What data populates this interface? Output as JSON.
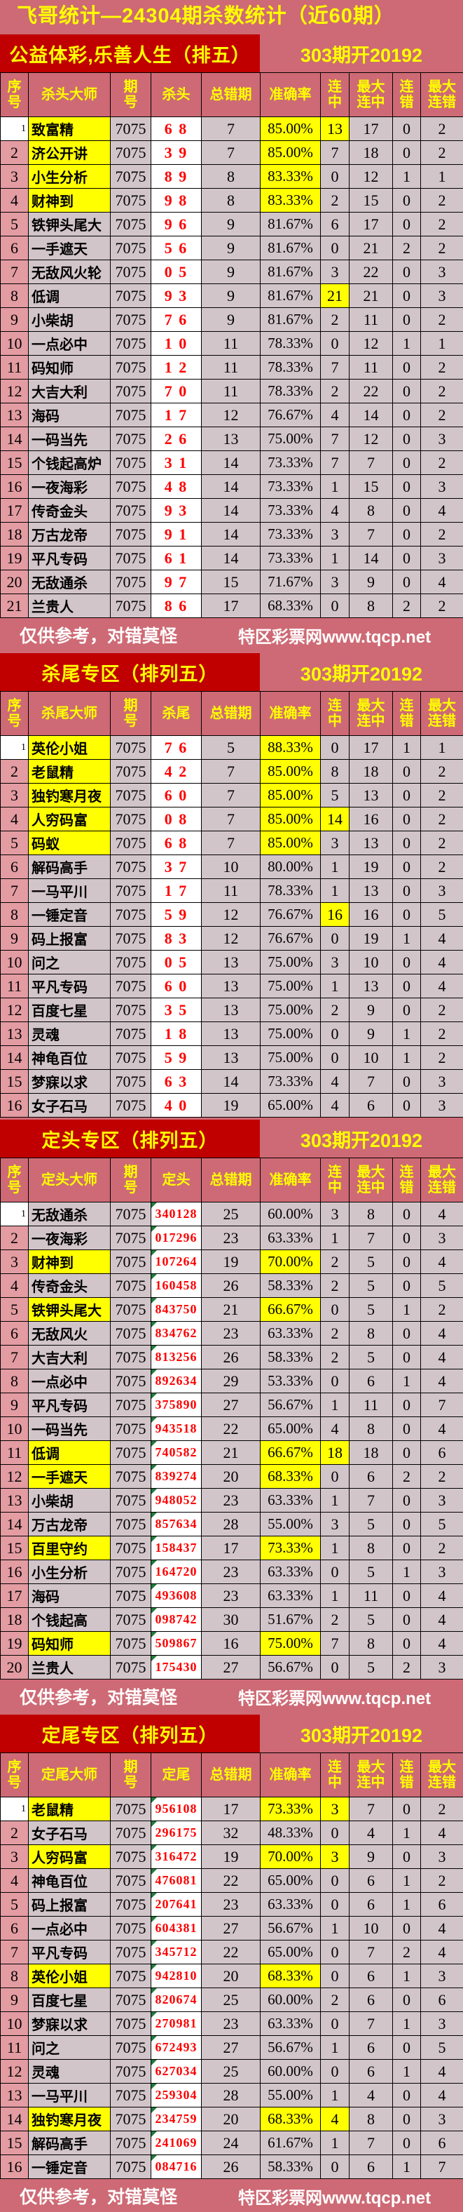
{
  "title": "飞哥统计—24304期杀数统计（近60期）",
  "footer": {
    "left": "仅供参考，对错莫怪",
    "right": "特区彩票网www.tqcp.net"
  },
  "colors": {
    "page_pink": "#CE6A75",
    "band_red": "#C00000",
    "highlight_yellow": "#FFFF00",
    "row_mauve": "#D2C5C9",
    "seq_salmon": "#E39CA2",
    "pick_red_text": "#FF0000",
    "note_green": "#1E7A3C"
  },
  "sections": [
    {
      "key": "sha-tou",
      "band_left": "公益体彩,乐善人生（排五）",
      "band_right": "303期开20192",
      "headers": [
        "序\n号",
        "杀头大师",
        "期\n号",
        "杀头",
        "总错期",
        "准确率",
        "连\n中",
        "最大\n连中",
        "连\n错",
        "最大\n连错"
      ],
      "marker": 0,
      "footer_after": 1,
      "rows": [
        [
          1,
          "致富精",
          1,
          "7075",
          "6 8",
          "7",
          "85.00%",
          1,
          "13",
          1,
          "17",
          "0",
          "2"
        ],
        [
          2,
          "济公开讲",
          1,
          "7075",
          "3 9",
          "7",
          "85.00%",
          1,
          "7",
          0,
          "18",
          "0",
          "2"
        ],
        [
          3,
          "小生分析",
          1,
          "7075",
          "8 9",
          "8",
          "83.33%",
          1,
          "0",
          0,
          "12",
          "1",
          "1"
        ],
        [
          4,
          "财神到",
          1,
          "7075",
          "9 8",
          "8",
          "83.33%",
          1,
          "2",
          0,
          "15",
          "0",
          "2"
        ],
        [
          5,
          "铁钾头尾大",
          0,
          "7075",
          "9 6",
          "9",
          "81.67%",
          0,
          "6",
          0,
          "17",
          "0",
          "2"
        ],
        [
          6,
          "一手遮天",
          0,
          "7075",
          "5 6",
          "9",
          "81.67%",
          0,
          "0",
          0,
          "21",
          "2",
          "2"
        ],
        [
          7,
          "无敌风火轮",
          0,
          "7075",
          "0 5",
          "9",
          "81.67%",
          0,
          "3",
          0,
          "22",
          "0",
          "3"
        ],
        [
          8,
          "低调",
          0,
          "7075",
          "9 3",
          "9",
          "81.67%",
          0,
          "21",
          1,
          "21",
          "0",
          "3"
        ],
        [
          9,
          "小柴胡",
          0,
          "7075",
          "7 6",
          "9",
          "81.67%",
          0,
          "2",
          0,
          "11",
          "0",
          "2"
        ],
        [
          10,
          "一点必中",
          0,
          "7075",
          "1 0",
          "11",
          "78.33%",
          0,
          "0",
          0,
          "12",
          "1",
          "1"
        ],
        [
          11,
          "码知师",
          0,
          "7075",
          "1 2",
          "11",
          "78.33%",
          0,
          "7",
          0,
          "11",
          "0",
          "2"
        ],
        [
          12,
          "大吉大利",
          0,
          "7075",
          "7 0",
          "11",
          "78.33%",
          0,
          "2",
          0,
          "22",
          "0",
          "2"
        ],
        [
          13,
          "海码",
          0,
          "7075",
          "1 7",
          "12",
          "76.67%",
          0,
          "4",
          0,
          "14",
          "0",
          "2"
        ],
        [
          14,
          "一码当先",
          0,
          "7075",
          "2 6",
          "13",
          "75.00%",
          0,
          "7",
          0,
          "12",
          "0",
          "3"
        ],
        [
          15,
          "个钱起高炉",
          0,
          "7075",
          "3 1",
          "14",
          "73.33%",
          0,
          "7",
          0,
          "7",
          "0",
          "2"
        ],
        [
          16,
          "一夜海彩",
          0,
          "7075",
          "4 8",
          "14",
          "73.33%",
          0,
          "1",
          0,
          "15",
          "0",
          "3"
        ],
        [
          17,
          "传奇金头",
          0,
          "7075",
          "9 3",
          "14",
          "73.33%",
          0,
          "4",
          0,
          "8",
          "0",
          "4"
        ],
        [
          18,
          "万古龙帝",
          0,
          "7075",
          "9 1",
          "14",
          "73.33%",
          0,
          "3",
          0,
          "7",
          "0",
          "2"
        ],
        [
          19,
          "平凡专码",
          0,
          "7075",
          "6 1",
          "14",
          "73.33%",
          0,
          "1",
          0,
          "14",
          "0",
          "3"
        ],
        [
          20,
          "无敌通杀",
          0,
          "7075",
          "9 7",
          "15",
          "71.67%",
          0,
          "3",
          0,
          "9",
          "0",
          "4"
        ],
        [
          21,
          "兰贵人",
          0,
          "7075",
          "8 6",
          "17",
          "68.33%",
          0,
          "0",
          0,
          "8",
          "2",
          "2"
        ]
      ]
    },
    {
      "key": "sha-wei",
      "band_left": "杀尾专区（排列五）",
      "band_right": "303期开20192",
      "headers": [
        "序\n号",
        "杀尾大师",
        "期\n号",
        "杀尾",
        "总错期",
        "准确率",
        "连\n中",
        "最大\n连中",
        "连\n错",
        "最大\n连错"
      ],
      "marker": 0,
      "footer_after": 0,
      "rows": [
        [
          1,
          "英伦小姐",
          1,
          "7075",
          "7 6",
          "5",
          "88.33%",
          1,
          "0",
          0,
          "17",
          "1",
          "1"
        ],
        [
          2,
          "老鼠精",
          1,
          "7075",
          "4 2",
          "7",
          "85.00%",
          1,
          "8",
          0,
          "18",
          "0",
          "2"
        ],
        [
          3,
          "独钓寒月夜",
          1,
          "7075",
          "6 0",
          "7",
          "85.00%",
          1,
          "5",
          0,
          "13",
          "0",
          "2"
        ],
        [
          4,
          "人穷码富",
          1,
          "7075",
          "0 8",
          "7",
          "85.00%",
          1,
          "14",
          1,
          "16",
          "0",
          "2"
        ],
        [
          5,
          "码蚁",
          1,
          "7075",
          "6 8",
          "7",
          "85.00%",
          1,
          "3",
          0,
          "13",
          "0",
          "2"
        ],
        [
          6,
          "解码高手",
          0,
          "7075",
          "3 7",
          "10",
          "80.00%",
          0,
          "1",
          0,
          "19",
          "0",
          "2"
        ],
        [
          7,
          "一马平川",
          0,
          "7075",
          "1 7",
          "11",
          "78.33%",
          0,
          "1",
          0,
          "13",
          "0",
          "3"
        ],
        [
          8,
          "一锤定音",
          0,
          "7075",
          "5 9",
          "12",
          "76.67%",
          0,
          "16",
          1,
          "16",
          "0",
          "5"
        ],
        [
          9,
          "码上报富",
          0,
          "7075",
          "8 3",
          "12",
          "76.67%",
          0,
          "0",
          0,
          "19",
          "1",
          "4"
        ],
        [
          10,
          "问之",
          0,
          "7075",
          "0 5",
          "13",
          "75.00%",
          0,
          "3",
          0,
          "10",
          "0",
          "4"
        ],
        [
          11,
          "平凡专码",
          0,
          "7075",
          "6 0",
          "13",
          "75.00%",
          0,
          "1",
          0,
          "13",
          "0",
          "4"
        ],
        [
          12,
          "百度七星",
          0,
          "7075",
          "3 5",
          "13",
          "75.00%",
          0,
          "2",
          0,
          "9",
          "0",
          "2"
        ],
        [
          13,
          "灵魂",
          0,
          "7075",
          "1 8",
          "13",
          "75.00%",
          0,
          "0",
          0,
          "9",
          "1",
          "2"
        ],
        [
          14,
          "神龟百位",
          0,
          "7075",
          "5 9",
          "13",
          "75.00%",
          0,
          "0",
          0,
          "10",
          "1",
          "2"
        ],
        [
          15,
          "梦寐以求",
          0,
          "7075",
          "6 3",
          "14",
          "73.33%",
          0,
          "4",
          0,
          "7",
          "0",
          "3"
        ],
        [
          16,
          "女子石马",
          0,
          "7075",
          "4 0",
          "19",
          "65.00%",
          0,
          "4",
          0,
          "6",
          "0",
          "3"
        ]
      ]
    },
    {
      "key": "ding-tou",
      "band_left": "定头专区（排列五）",
      "band_right": "303期开20192",
      "headers": [
        "序\n号",
        "定头大师",
        "期\n号",
        "定头",
        "总错期",
        "准确率",
        "连\n中",
        "最大\n连中",
        "连\n错",
        "最大\n连错"
      ],
      "marker": 1,
      "footer_after": 1,
      "rows": [
        [
          1,
          "无敌通杀",
          0,
          "7075",
          "340128",
          "25",
          "60.00%",
          0,
          "3",
          0,
          "8",
          "0",
          "4"
        ],
        [
          2,
          "一夜海彩",
          0,
          "7075",
          "017296",
          "23",
          "63.33%",
          0,
          "1",
          0,
          "7",
          "0",
          "3"
        ],
        [
          3,
          "财神到",
          1,
          "7075",
          "107264",
          "19",
          "70.00%",
          1,
          "2",
          0,
          "5",
          "0",
          "4"
        ],
        [
          4,
          "传奇金头",
          0,
          "7075",
          "160458",
          "26",
          "58.33%",
          0,
          "2",
          0,
          "5",
          "0",
          "5"
        ],
        [
          5,
          "铁钾头尾大",
          1,
          "7075",
          "843750",
          "21",
          "66.67%",
          1,
          "0",
          0,
          "5",
          "1",
          "2"
        ],
        [
          6,
          "无敌风火",
          0,
          "7075",
          "834762",
          "23",
          "63.33%",
          0,
          "2",
          0,
          "8",
          "0",
          "4"
        ],
        [
          7,
          "大吉大利",
          0,
          "7075",
          "813256",
          "26",
          "58.33%",
          0,
          "2",
          0,
          "5",
          "0",
          "4"
        ],
        [
          8,
          "一点必中",
          0,
          "7075",
          "892634",
          "29",
          "53.33%",
          0,
          "0",
          0,
          "6",
          "1",
          "4"
        ],
        [
          9,
          "平凡专码",
          0,
          "7075",
          "375890",
          "27",
          "56.67%",
          0,
          "1",
          0,
          "11",
          "0",
          "7"
        ],
        [
          10,
          "一码当先",
          0,
          "7075",
          "943518",
          "22",
          "65.00%",
          0,
          "4",
          0,
          "8",
          "0",
          "4"
        ],
        [
          11,
          "低调",
          1,
          "7075",
          "740582",
          "21",
          "66.67%",
          1,
          "18",
          1,
          "18",
          "0",
          "6"
        ],
        [
          12,
          "一手遮天",
          1,
          "7075",
          "839274",
          "20",
          "68.33%",
          1,
          "0",
          0,
          "6",
          "2",
          "2"
        ],
        [
          13,
          "小柴胡",
          0,
          "7075",
          "948052",
          "23",
          "63.33%",
          0,
          "1",
          0,
          "7",
          "0",
          "3"
        ],
        [
          14,
          "万古龙帝",
          0,
          "7075",
          "857634",
          "28",
          "55.00%",
          0,
          "3",
          0,
          "5",
          "0",
          "5"
        ],
        [
          15,
          "百里守约",
          1,
          "7075",
          "158437",
          "17",
          "73.33%",
          1,
          "1",
          0,
          "8",
          "0",
          "2"
        ],
        [
          16,
          "小生分析",
          0,
          "7075",
          "164720",
          "23",
          "63.33%",
          0,
          "0",
          0,
          "5",
          "1",
          "3"
        ],
        [
          17,
          "海码",
          0,
          "7075",
          "493608",
          "23",
          "63.33%",
          0,
          "1",
          0,
          "11",
          "0",
          "4"
        ],
        [
          18,
          "个钱起高",
          0,
          "7075",
          "098742",
          "30",
          "51.67%",
          0,
          "2",
          0,
          "5",
          "0",
          "4"
        ],
        [
          19,
          "码知师",
          1,
          "7075",
          "509867",
          "16",
          "75.00%",
          1,
          "7",
          0,
          "8",
          "0",
          "4"
        ],
        [
          20,
          "兰贵人",
          0,
          "7075",
          "175430",
          "27",
          "56.67%",
          0,
          "0",
          0,
          "5",
          "2",
          "3"
        ]
      ]
    },
    {
      "key": "ding-wei",
      "band_left": "定尾专区（排列五）",
      "band_right": "303期开20192",
      "headers": [
        "序\n号",
        "定尾大师",
        "期\n号",
        "定尾",
        "总错期",
        "准确率",
        "连\n中",
        "最大\n连中",
        "连\n错",
        "最大\n连错"
      ],
      "marker": 1,
      "footer_after": 1,
      "rows": [
        [
          1,
          "老鼠精",
          1,
          "7075",
          "956108",
          "17",
          "73.33%",
          1,
          "3",
          1,
          "7",
          "0",
          "2"
        ],
        [
          2,
          "女子石马",
          0,
          "7075",
          "296175",
          "32",
          "48.33%",
          0,
          "0",
          0,
          "4",
          "1",
          "4"
        ],
        [
          3,
          "人穷码富",
          1,
          "7075",
          "316472",
          "19",
          "70.00%",
          1,
          "3",
          1,
          "9",
          "0",
          "3"
        ],
        [
          4,
          "神龟百位",
          0,
          "7075",
          "476081",
          "22",
          "65.00%",
          0,
          "0",
          0,
          "6",
          "1",
          "2"
        ],
        [
          5,
          "码上报富",
          0,
          "7075",
          "207641",
          "23",
          "63.33%",
          0,
          "0",
          0,
          "6",
          "1",
          "6"
        ],
        [
          6,
          "一点必中",
          0,
          "7075",
          "604381",
          "27",
          "56.67%",
          0,
          "1",
          0,
          "10",
          "0",
          "4"
        ],
        [
          7,
          "平凡专码",
          0,
          "7075",
          "345712",
          "22",
          "65.00%",
          0,
          "0",
          0,
          "7",
          "2",
          "4"
        ],
        [
          8,
          "英伦小姐",
          1,
          "7075",
          "942810",
          "20",
          "68.33%",
          1,
          "0",
          0,
          "6",
          "1",
          "3"
        ],
        [
          9,
          "百度七星",
          0,
          "7075",
          "820674",
          "25",
          "60.00%",
          0,
          "2",
          0,
          "6",
          "0",
          "6"
        ],
        [
          10,
          "梦寐以求",
          0,
          "7075",
          "270981",
          "23",
          "63.33%",
          0,
          "0",
          0,
          "7",
          "1",
          "3"
        ],
        [
          11,
          "问之",
          0,
          "7075",
          "672493",
          "27",
          "56.67%",
          0,
          "1",
          0,
          "6",
          "0",
          "5"
        ],
        [
          12,
          "灵魂",
          0,
          "7075",
          "627034",
          "25",
          "60.00%",
          0,
          "0",
          0,
          "6",
          "1",
          "4"
        ],
        [
          13,
          "一马平川",
          0,
          "7075",
          "259304",
          "28",
          "55.00%",
          0,
          "1",
          0,
          "4",
          "0",
          "4"
        ],
        [
          14,
          "独钓寒月夜",
          1,
          "7075",
          "234759",
          "20",
          "68.33%",
          1,
          "4",
          1,
          "8",
          "0",
          "3"
        ],
        [
          15,
          "解码高手",
          0,
          "7075",
          "241069",
          "24",
          "61.67%",
          0,
          "1",
          0,
          "7",
          "0",
          "6"
        ],
        [
          16,
          "一锤定音",
          0,
          "7075",
          "084716",
          "26",
          "58.33%",
          0,
          "0",
          0,
          "6",
          "1",
          "7"
        ]
      ]
    }
  ]
}
